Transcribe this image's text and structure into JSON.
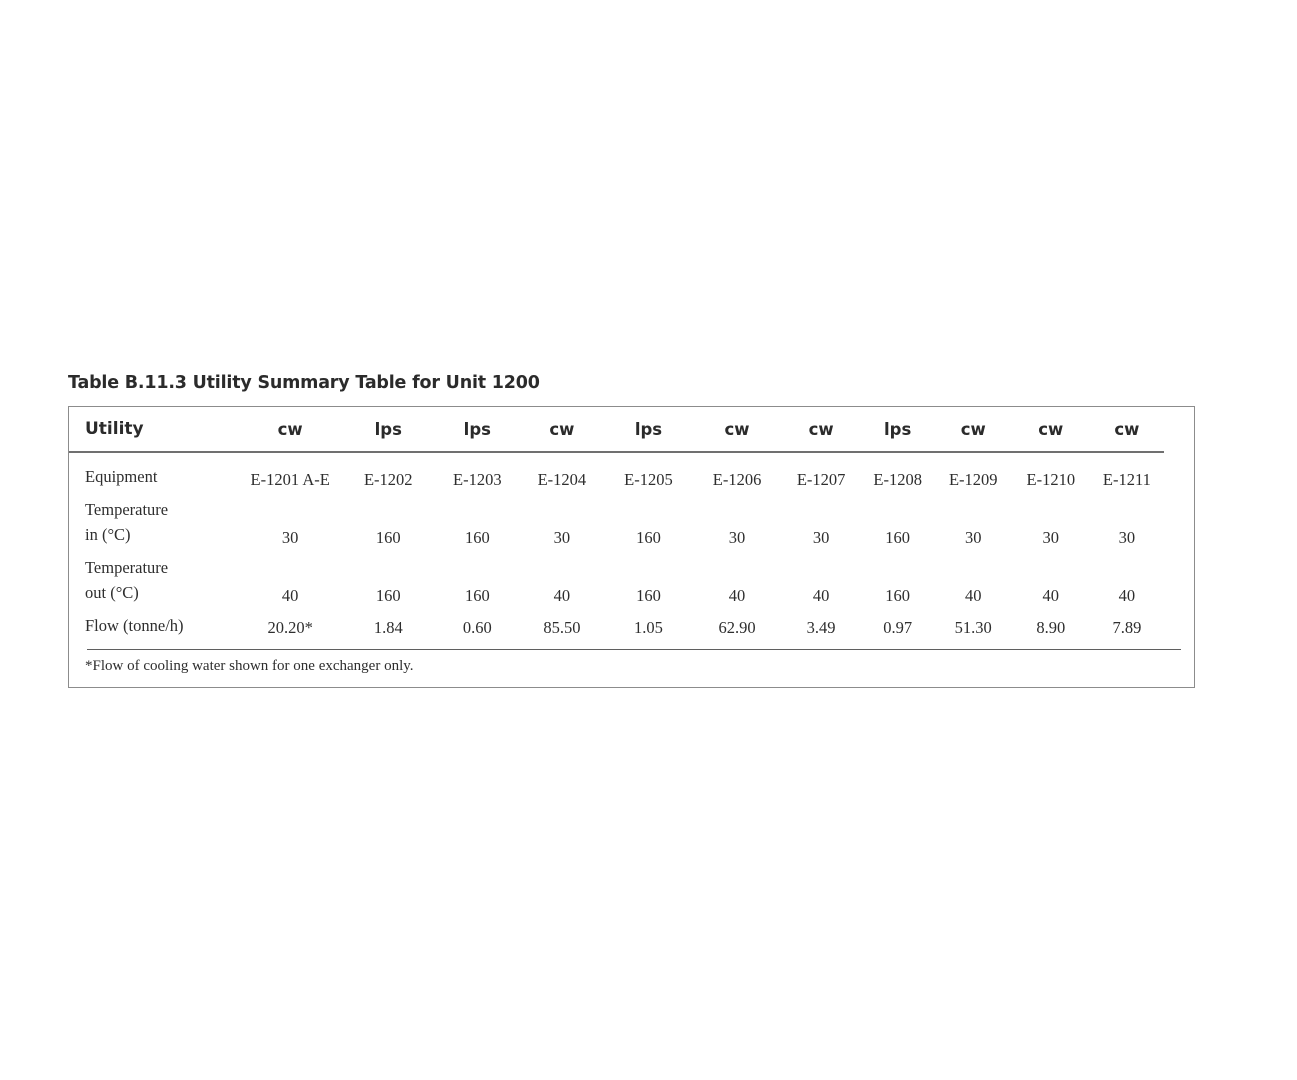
{
  "page": {
    "title": "Table B.11.3 Utility Summary Table for Unit 1200"
  },
  "table": {
    "header": {
      "label": "Utility",
      "utilities": [
        "cw",
        "lps",
        "lps",
        "cw",
        "lps",
        "cw",
        "cw",
        "lps",
        "cw",
        "cw",
        "cw"
      ]
    },
    "rows": {
      "equipment": {
        "label": "Equipment",
        "values": [
          "E-1201 A-E",
          "E-1202",
          "E-1203",
          "E-1204",
          "E-1205",
          "E-1206",
          "E-1207",
          "E-1208",
          "E-1209",
          "E-1210",
          "E-1211"
        ]
      },
      "temp_in": {
        "label_line1": "Temperature",
        "label_line2": "in (°C)",
        "values": [
          "30",
          "160",
          "160",
          "30",
          "160",
          "30",
          "30",
          "160",
          "30",
          "30",
          "30"
        ]
      },
      "temp_out": {
        "label_line1": "Temperature",
        "label_line2": "out (°C)",
        "values": [
          "40",
          "160",
          "160",
          "40",
          "160",
          "40",
          "40",
          "160",
          "40",
          "40",
          "40"
        ]
      },
      "flow": {
        "label": "Flow (tonne/h)",
        "values": [
          "20.20*",
          "1.84",
          "0.60",
          "85.50",
          "1.05",
          "62.90",
          "3.49",
          "0.97",
          "51.30",
          "8.90",
          "7.89"
        ]
      }
    },
    "footnote": "*Flow of cooling water shown for one exchanger only."
  },
  "colors": {
    "text": "#2e2e2e",
    "box_border": "#8c8c8c",
    "header_rule": "#707070",
    "footnote_rule": "#5f5f5f"
  }
}
